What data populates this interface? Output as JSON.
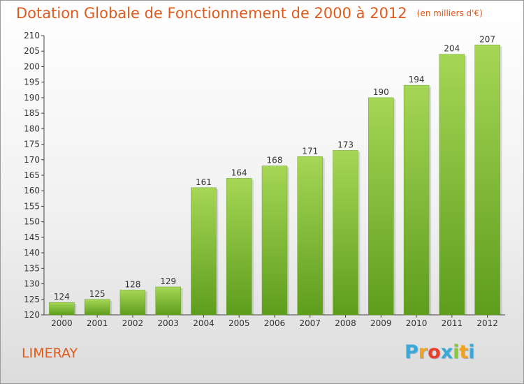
{
  "chart_data": {
    "type": "bar",
    "title": "Dotation Globale de Fonctionnement de 2000 à 2012",
    "unit_note": "(en milliers d'€)",
    "categories": [
      "2000",
      "2001",
      "2002",
      "2003",
      "2004",
      "2005",
      "2006",
      "2007",
      "2008",
      "2009",
      "2010",
      "2011",
      "2012"
    ],
    "values": [
      124,
      125,
      128,
      129,
      161,
      164,
      168,
      171,
      173,
      190,
      194,
      204,
      207
    ],
    "ylim": [
      120,
      210
    ],
    "yticks": [
      120,
      125,
      130,
      135,
      140,
      145,
      150,
      155,
      160,
      165,
      170,
      175,
      180,
      185,
      190,
      195,
      200,
      205,
      210
    ],
    "grid": false,
    "bar_color": "#7cba2e",
    "bar_color_light": "#a6d656",
    "bar_color_dark": "#5e9d1c"
  },
  "commune": "LIMERAY",
  "logo": {
    "letters": [
      "P",
      "r",
      "o",
      "x",
      "i",
      "t",
      "i"
    ],
    "colors": [
      "#3aa8d8",
      "#f2a21e",
      "#e8402a",
      "#3aa8d8",
      "#8cc63f",
      "#f2a21e",
      "#3aa8d8"
    ]
  }
}
